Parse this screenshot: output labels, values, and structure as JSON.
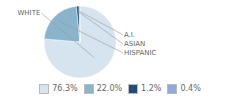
{
  "chart_data": {
    "type": "pie",
    "categories": [
      "WHITE",
      "HISPANIC",
      "ASIAN",
      "A.I."
    ],
    "values": [
      76.3,
      22.0,
      1.2,
      0.4
    ],
    "value_labels": [
      "76.3%",
      "22.0%",
      "1.2%",
      "0.4%"
    ],
    "colors": [
      "#d6e4f0",
      "#8ab4cc",
      "#1f4e79",
      "#8faadc"
    ],
    "legend": "bottom"
  }
}
